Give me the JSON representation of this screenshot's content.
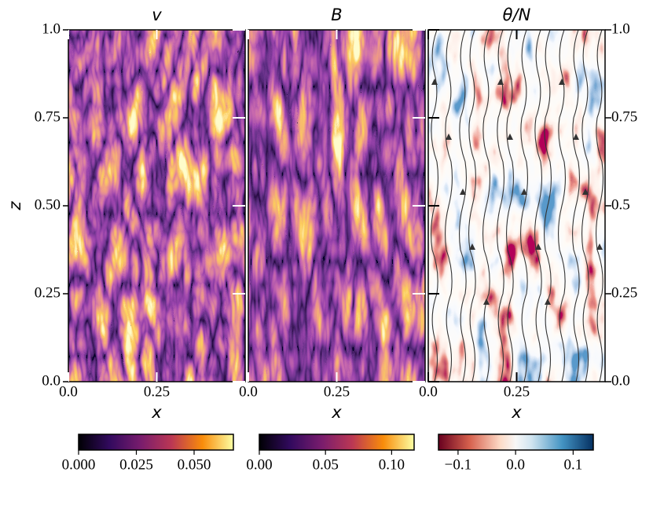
{
  "chart_data": [
    {
      "type": "heatmap",
      "title": "v",
      "xlabel": "x",
      "ylabel": "z",
      "xlim": [
        0,
        0.5
      ],
      "xticks": [
        {
          "value": 0,
          "label": "0.0"
        },
        0.25
      ],
      "ylim": [
        0,
        1
      ],
      "yticks": [
        {
          "value": 0,
          "label": "0.0"
        },
        0.25,
        {
          "value": 0.5,
          "label": "0.50"
        },
        0.75,
        {
          "value": 1,
          "label": "1.0"
        }
      ],
      "yaxis": "left",
      "colormap": "inferno",
      "colorbar": {
        "lim": [
          0,
          0.067
        ],
        "ticks": [
          {
            "value": 0,
            "label": "0.000"
          },
          {
            "value": 0.025,
            "label": "0.025"
          },
          {
            "value": 0.05,
            "label": "0.050"
          }
        ]
      }
    },
    {
      "type": "heatmap",
      "title": "B",
      "xlabel": "x",
      "xlim": [
        0,
        0.5
      ],
      "xticks": [
        {
          "value": 0,
          "label": "0.0"
        },
        0.25
      ],
      "colormap": "inferno",
      "colorbar": {
        "lim": [
          0,
          0.117
        ],
        "ticks": [
          {
            "value": 0,
            "label": "0.00"
          },
          0.05,
          {
            "value": 0.1,
            "label": "0.10"
          }
        ]
      }
    },
    {
      "type": "heatmap",
      "title": "θ/N",
      "xlabel": "x",
      "xlim": [
        0,
        0.5
      ],
      "xticks": [
        {
          "value": 0,
          "label": "0.0"
        },
        0.25
      ],
      "ylim": [
        0,
        1
      ],
      "yticks": [
        {
          "value": 1,
          "label": "1.0"
        },
        0.75,
        0.5,
        0.25,
        {
          "value": 0,
          "label": "0.0"
        }
      ],
      "yaxis": "right",
      "colormap": "RdBu",
      "colorbar": {
        "lim": [
          -0.134,
          0.135
        ],
        "ticks": [
          {
            "value": -0.1,
            "label": "−0.1"
          },
          {
            "value": 0,
            "label": "0.0"
          },
          0.1
        ]
      }
    }
  ]
}
